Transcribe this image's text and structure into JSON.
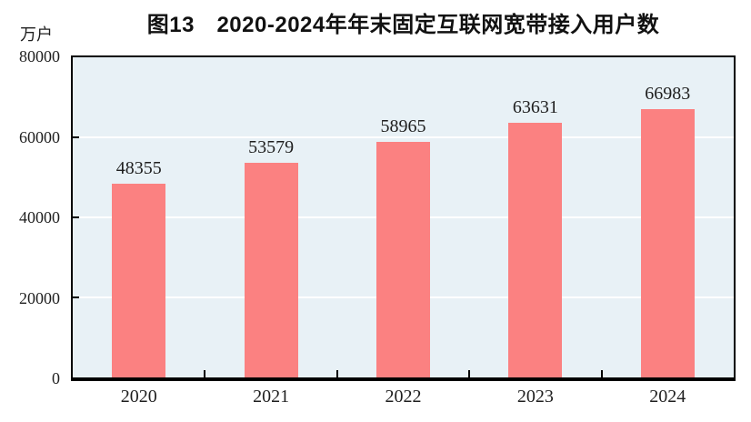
{
  "chart_data": {
    "type": "bar",
    "title": "图13　2020-2024年年末固定互联网宽带接入用户数",
    "unit_label": "万户",
    "categories": [
      "2020",
      "2021",
      "2022",
      "2023",
      "2024"
    ],
    "values": [
      48355,
      53579,
      58965,
      63631,
      66983
    ],
    "data_labels": [
      "48355",
      "53579",
      "58965",
      "63631",
      "66983"
    ],
    "ylim": [
      0,
      80000
    ],
    "yticks": [
      0,
      20000,
      40000,
      60000,
      80000
    ],
    "grid": "horizontal",
    "legend_position": "none",
    "colors": {
      "bar": "#fb8181",
      "plot_background": "#e8f1f6",
      "gridline": "#ffffff",
      "axis": "#000000",
      "text": "#1f1f1f"
    }
  }
}
